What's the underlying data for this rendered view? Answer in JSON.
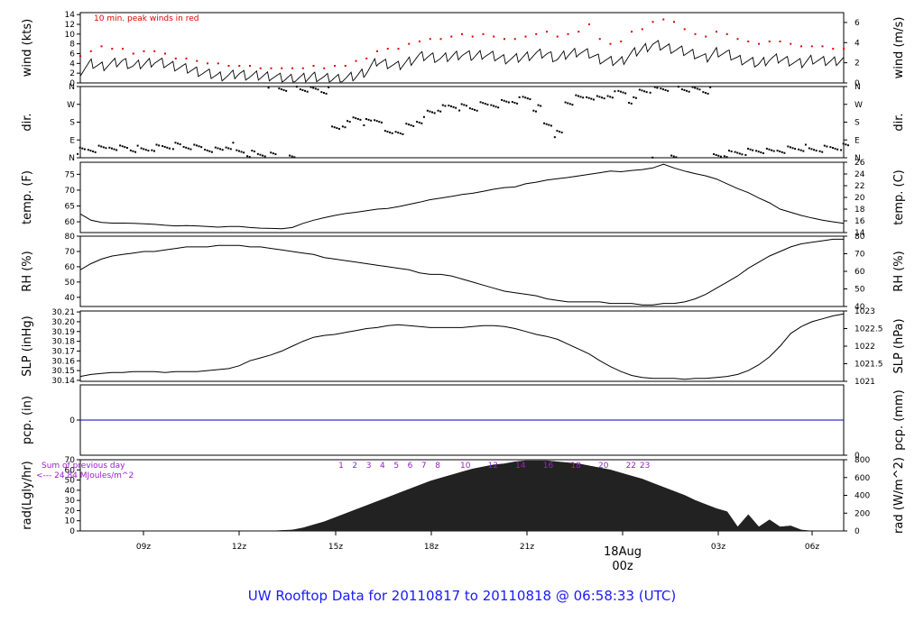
{
  "title": "UW Rooftop Data for 20110817  to  20110818 @ 06:58:33  (UTC)",
  "colors": {
    "title": "#1a1aff",
    "peak": "#e00000",
    "pcp": "#0000cc",
    "rad_note": "#9a20c8",
    "hour": "#9a20c8",
    "axis": "#000000"
  },
  "chart_data": [
    {
      "type": "line",
      "ylabel": "wind (kts)",
      "ylabel_right": "wind (m/s)",
      "yticks": [
        "0",
        "2",
        "4",
        "6",
        "8",
        "10",
        "12",
        "14"
      ],
      "yticks_right": [
        "0",
        "2",
        "4",
        "6"
      ],
      "note": "10 min. peak winds in red",
      "ylim": [
        0,
        14.4
      ],
      "series": [
        {
          "values": [
            2.5,
            4.0,
            3.5,
            4.0,
            4.5,
            3.5,
            4.0,
            4.5,
            4.0,
            3.5,
            3.0,
            2.5,
            2.0,
            1.5,
            1.5,
            2.0,
            1.5,
            1.5,
            1.5,
            1.0,
            1.0,
            1.0,
            1.5,
            1.0,
            1.0,
            1.0,
            1.5,
            2.5,
            4.5,
            4.0,
            3.5,
            4.5,
            5.5,
            5.5,
            5.0,
            5.5,
            6.0,
            5.5,
            6.0,
            5.5,
            5.0,
            5.0,
            5.5,
            6.0,
            6.0,
            5.0,
            6.0,
            6.5,
            6.0,
            5.0,
            4.5,
            4.5,
            6.0,
            7.0,
            8.0,
            7.5,
            7.0,
            6.5,
            6.0,
            5.0,
            6.5,
            6.0,
            5.0,
            4.5,
            4.0,
            5.0,
            5.0,
            4.5,
            4.0,
            5.0,
            4.5,
            4.5,
            5.0
          ]
        },
        {
          "values": [
            5.5,
            6.5,
            7.5,
            7.0,
            7.0,
            6.0,
            6.5,
            6.5,
            6.0,
            5.0,
            5.0,
            4.5,
            4.0,
            4.0,
            3.5,
            3.5,
            3.5,
            3.0,
            3.0,
            3.0,
            3.0,
            3.0,
            3.5,
            3.0,
            3.5,
            3.5,
            4.5,
            5.0,
            6.5,
            7.0,
            7.0,
            8.0,
            8.5,
            9.0,
            9.0,
            9.5,
            10.0,
            9.5,
            10.0,
            9.5,
            9.0,
            9.0,
            9.5,
            10.0,
            10.5,
            9.5,
            10.0,
            10.5,
            12.0,
            9.0,
            8.0,
            8.5,
            10.5,
            11.0,
            12.5,
            13.0,
            12.5,
            11.0,
            10.0,
            9.5,
            10.5,
            10.0,
            9.0,
            8.5,
            8.0,
            8.5,
            8.5,
            8.0,
            7.5,
            7.5,
            7.5,
            7.0,
            7.0
          ]
        }
      ]
    },
    {
      "type": "scatter",
      "ylabel": "dir.",
      "ylabel_right": "dir.",
      "yticks": [
        "N",
        "E",
        "S",
        "W",
        "N"
      ],
      "yticks_right": [
        "N",
        "E",
        "S",
        "W",
        "N"
      ],
      "ylim": [
        0,
        360
      ],
      "values": [
        35,
        40,
        45,
        55,
        50,
        45,
        40,
        50,
        55,
        60,
        55,
        50,
        45,
        40,
        60,
        30,
        20,
        15,
        10,
        350,
        355,
        350,
        345,
        340,
        150,
        170,
        200,
        180,
        190,
        120,
        135,
        160,
        190,
        230,
        250,
        260,
        255,
        250,
        265,
        270,
        280,
        290,
        300,
        250,
        170,
        120,
        280,
        300,
        310,
        300,
        320,
        330,
        290,
        340,
        345,
        350,
        355,
        350,
        345,
        340,
        10,
        20,
        25,
        30,
        35,
        30,
        40,
        45,
        50,
        40,
        45,
        50,
        55
      ]
    },
    {
      "type": "line",
      "ylabel": "temp. (F)",
      "ylabel_right": "temp. (C)",
      "yticks": [
        "60",
        "65",
        "70",
        "75"
      ],
      "yticks_right": [
        "14",
        "16",
        "18",
        "20",
        "22",
        "24",
        "26"
      ],
      "ylim": [
        56.6,
        78.8
      ],
      "values": [
        62.5,
        60.5,
        59.8,
        59.6,
        59.6,
        59.5,
        59.4,
        59.2,
        58.9,
        58.7,
        58.8,
        58.7,
        58.5,
        58.3,
        58.5,
        58.5,
        58.2,
        58.0,
        57.9,
        57.8,
        58.2,
        59.5,
        60.5,
        61.3,
        62.0,
        62.6,
        63.0,
        63.5,
        64.0,
        64.2,
        64.8,
        65.5,
        66.2,
        67.0,
        67.5,
        68.0,
        68.6,
        69.0,
        69.6,
        70.3,
        70.8,
        71.0,
        72.0,
        72.5,
        73.2,
        73.6,
        74.0,
        74.5,
        75.0,
        75.5,
        76.0,
        75.8,
        76.2,
        76.5,
        77.0,
        78.2,
        77.0,
        76.0,
        75.2,
        74.5,
        73.5,
        72.0,
        70.5,
        69.2,
        67.5,
        66.0,
        64.0,
        63.0,
        62.0,
        61.2,
        60.5,
        60.0,
        59.5
      ]
    },
    {
      "type": "line",
      "ylabel": "RH (%)",
      "ylabel_right": "RH (%)",
      "yticks": [
        "40",
        "50",
        "60",
        "70",
        "80"
      ],
      "yticks_right": [
        "40",
        "50",
        "60",
        "70",
        "80"
      ],
      "ylim": [
        34,
        80
      ],
      "values": [
        58,
        62,
        65,
        67,
        68,
        69,
        70,
        70,
        71,
        72,
        73,
        73,
        73,
        74,
        74,
        74,
        73,
        73,
        72,
        71,
        70,
        69,
        68,
        66,
        65,
        64,
        63,
        62,
        61,
        60,
        59,
        58,
        56,
        55,
        55,
        54,
        52,
        50,
        48,
        46,
        44,
        43,
        42,
        41,
        39,
        38,
        37,
        37,
        37,
        37,
        36,
        36,
        36,
        35,
        35,
        36,
        36,
        37,
        39,
        42,
        46,
        50,
        54,
        59,
        63,
        67,
        70,
        73,
        75,
        76,
        77,
        78,
        78
      ]
    },
    {
      "type": "line",
      "ylabel": "SLP (inHg)",
      "ylabel_right": "SLP (hPa)",
      "yticks": [
        "30.14",
        "30.15",
        "30.16",
        "30.17",
        "30.18",
        "30.19",
        "30.20",
        "30.21"
      ],
      "yticks_right": [
        "1021",
        "1021.5",
        "1022",
        "1022.5",
        "1023"
      ],
      "ylim": [
        30.139,
        30.211
      ],
      "values": [
        30.144,
        30.146,
        30.147,
        30.148,
        30.148,
        30.149,
        30.149,
        30.149,
        30.148,
        30.149,
        30.149,
        30.149,
        30.15,
        30.151,
        30.152,
        30.155,
        30.16,
        30.163,
        30.166,
        30.17,
        30.175,
        30.18,
        30.184,
        30.186,
        30.187,
        30.189,
        30.191,
        30.193,
        30.194,
        30.196,
        30.197,
        30.196,
        30.195,
        30.194,
        30.194,
        30.194,
        30.194,
        30.195,
        30.196,
        30.196,
        30.195,
        30.193,
        30.19,
        30.187,
        30.185,
        30.182,
        30.177,
        30.172,
        30.167,
        30.16,
        30.154,
        30.149,
        30.145,
        30.143,
        30.142,
        30.142,
        30.142,
        30.141,
        30.142,
        30.142,
        30.143,
        30.144,
        30.146,
        30.15,
        30.156,
        30.164,
        30.175,
        30.188,
        30.195,
        30.2,
        30.203,
        30.206,
        30.208
      ]
    },
    {
      "type": "line",
      "ylabel": "pcp. (in)",
      "ylabel_right": "pcp. (mm)",
      "yticks": [
        "0"
      ],
      "yticks_right": [
        "0"
      ],
      "ylim": [
        -0.05,
        0.05
      ],
      "values": [
        0,
        0
      ]
    },
    {
      "type": "area",
      "ylabel": "rad(Lgly/hr)",
      "ylabel_right": "rad (W/m^2)",
      "yticks": [
        "0",
        "10",
        "20",
        "30",
        "40",
        "50",
        "60",
        "70"
      ],
      "yticks_right": [
        "0",
        "200",
        "400",
        "600",
        "800"
      ],
      "ylim": [
        0,
        70
      ],
      "note_line1": "Sum of previous day",
      "note_line2": "<--- 24.84 MJoules/m^2",
      "hour_labels": [
        "1",
        "2",
        "3",
        "4",
        "5",
        "6",
        "7",
        "8",
        "",
        "10",
        "",
        "12",
        "",
        "14",
        "",
        "16",
        "",
        "18",
        "",
        "20",
        "",
        "22",
        "23"
      ],
      "values": [
        0,
        0,
        0,
        0,
        0,
        0,
        0,
        0,
        0,
        0,
        0,
        0,
        0,
        0,
        0,
        0,
        0,
        0,
        0,
        0.5,
        1,
        3,
        6,
        9,
        13,
        17,
        21,
        25,
        29,
        33,
        37,
        41,
        45,
        49,
        52,
        55,
        58,
        61,
        63,
        65,
        66,
        68,
        69,
        69,
        69,
        68,
        67,
        66,
        64,
        62,
        60,
        57,
        54,
        51,
        47,
        43,
        39,
        35,
        30,
        26,
        22,
        19,
        4,
        16,
        4,
        11,
        4,
        5,
        1,
        0,
        0,
        0,
        0
      ]
    }
  ],
  "xaxis": {
    "labels": [
      "09z",
      "12z",
      "15z",
      "18z",
      "21z",
      "00z",
      "03z",
      "06z"
    ],
    "date_label": "18Aug",
    "date_hour": "00z"
  }
}
